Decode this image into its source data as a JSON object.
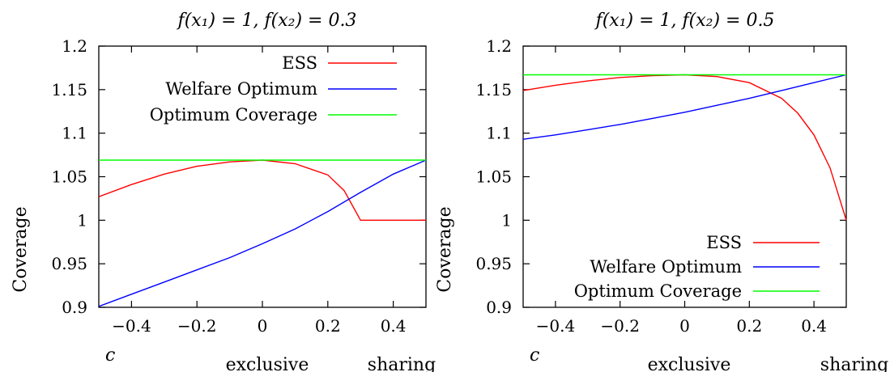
{
  "chart_data": [
    {
      "type": "line",
      "title": "f(x₁) = 1, f(x₂) = 0.3",
      "ylabel": "Coverage",
      "xlabel": "c",
      "x_annotations": [
        "exclusive",
        "sharing"
      ],
      "xlim": [
        -0.5,
        0.5
      ],
      "ylim": [
        0.9,
        1.2
      ],
      "xticks": [
        "−0.4",
        "−0.2",
        "0",
        "0.2",
        "0.4"
      ],
      "xtick_values": [
        -0.4,
        -0.2,
        0,
        0.2,
        0.4
      ],
      "yticks": [
        "0.9",
        "0.95",
        "1",
        "1.05",
        "1.1",
        "1.15",
        "1.2"
      ],
      "ytick_values": [
        0.9,
        0.95,
        1,
        1.05,
        1.1,
        1.15,
        1.2
      ],
      "grid": false,
      "legend_position": "top-right",
      "series": [
        {
          "name": "ESS",
          "color": "#ff0000",
          "x": [
            -0.5,
            -0.4,
            -0.3,
            -0.2,
            -0.1,
            0.0,
            0.1,
            0.2,
            0.25,
            0.3,
            0.4,
            0.5
          ],
          "y": [
            1.027,
            1.041,
            1.053,
            1.062,
            1.067,
            1.069,
            1.065,
            1.052,
            1.034,
            1.0,
            1.0,
            1.0
          ]
        },
        {
          "name": "Welfare Optimum",
          "color": "#0000ff",
          "x": [
            -0.5,
            -0.4,
            -0.3,
            -0.2,
            -0.1,
            0.0,
            0.1,
            0.2,
            0.3,
            0.4,
            0.5
          ],
          "y": [
            0.901,
            0.915,
            0.929,
            0.943,
            0.957,
            0.973,
            0.99,
            1.01,
            1.032,
            1.053,
            1.069
          ]
        },
        {
          "name": "Optimum Coverage",
          "color": "#00ff00",
          "x": [
            -0.5,
            0.5
          ],
          "y": [
            1.069,
            1.069
          ]
        }
      ]
    },
    {
      "type": "line",
      "title": "f(x₁) = 1, f(x₂) = 0.5",
      "ylabel": "Coverage",
      "xlabel": "c",
      "x_annotations": [
        "exclusive",
        "sharing"
      ],
      "xlim": [
        -0.5,
        0.5
      ],
      "ylim": [
        0.9,
        1.2
      ],
      "xticks": [
        "−0.4",
        "−0.2",
        "0",
        "0.2",
        "0.4"
      ],
      "xtick_values": [
        -0.4,
        -0.2,
        0,
        0.2,
        0.4
      ],
      "yticks": [
        "0.9",
        "0.95",
        "1",
        "1.05",
        "1.1",
        "1.15",
        "1.2"
      ],
      "ytick_values": [
        0.9,
        0.95,
        1,
        1.05,
        1.1,
        1.15,
        1.2
      ],
      "grid": false,
      "legend_position": "bottom-right",
      "series": [
        {
          "name": "ESS",
          "color": "#ff0000",
          "x": [
            -0.5,
            -0.4,
            -0.3,
            -0.2,
            -0.1,
            0.0,
            0.1,
            0.2,
            0.3,
            0.35,
            0.4,
            0.45,
            0.5
          ],
          "y": [
            1.149,
            1.155,
            1.16,
            1.164,
            1.166,
            1.167,
            1.165,
            1.158,
            1.14,
            1.123,
            1.098,
            1.06,
            1.0
          ]
        },
        {
          "name": "Welfare Optimum",
          "color": "#0000ff",
          "x": [
            -0.5,
            -0.4,
            -0.3,
            -0.2,
            -0.1,
            0.0,
            0.1,
            0.2,
            0.3,
            0.4,
            0.5
          ],
          "y": [
            1.093,
            1.098,
            1.104,
            1.11,
            1.117,
            1.124,
            1.132,
            1.14,
            1.149,
            1.158,
            1.167
          ]
        },
        {
          "name": "Optimum Coverage",
          "color": "#00ff00",
          "x": [
            -0.5,
            0.5
          ],
          "y": [
            1.167,
            1.167
          ]
        }
      ]
    }
  ]
}
